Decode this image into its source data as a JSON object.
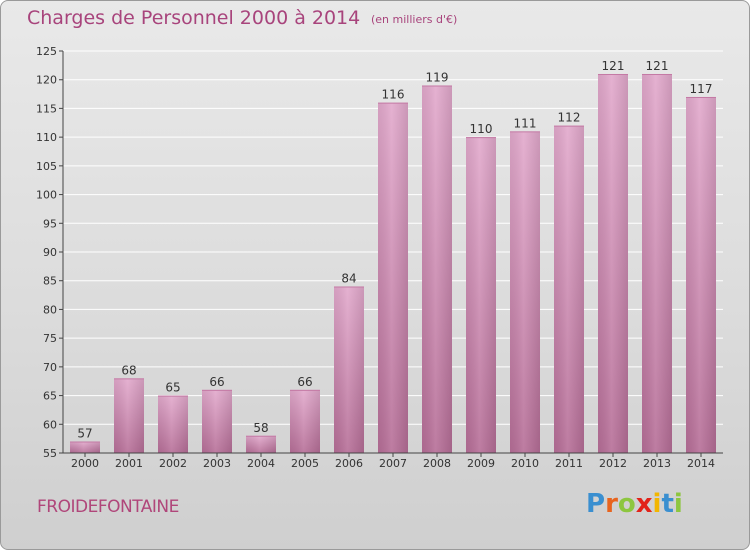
{
  "header": {
    "title": "Charges de Personnel 2000 à 2014",
    "subtitle": "(en milliers d'€)"
  },
  "footer": {
    "commune": "FROIDEFONTAINE",
    "logo": "Proxiti"
  },
  "colors": {
    "title": "#a8447c",
    "bar_top": "#e2a9cc",
    "bar_bottom": "#b66e97",
    "gridline": "#ffffff",
    "axis": "#444444"
  },
  "chart_data": {
    "type": "bar",
    "title": "Charges de Personnel 2000 à 2014",
    "subtitle": "(en milliers d'€)",
    "categories": [
      "2000",
      "2001",
      "2002",
      "2003",
      "2004",
      "2005",
      "2006",
      "2007",
      "2008",
      "2009",
      "2010",
      "2011",
      "2012",
      "2013",
      "2014"
    ],
    "values": [
      57,
      68,
      65,
      66,
      58,
      66,
      84,
      116,
      119,
      110,
      111,
      112,
      121,
      121,
      117
    ],
    "ylim": [
      55,
      125
    ],
    "yticks": [
      55,
      60,
      65,
      70,
      75,
      80,
      85,
      90,
      95,
      100,
      105,
      110,
      115,
      120,
      125
    ],
    "grid": true,
    "legend": "none"
  }
}
